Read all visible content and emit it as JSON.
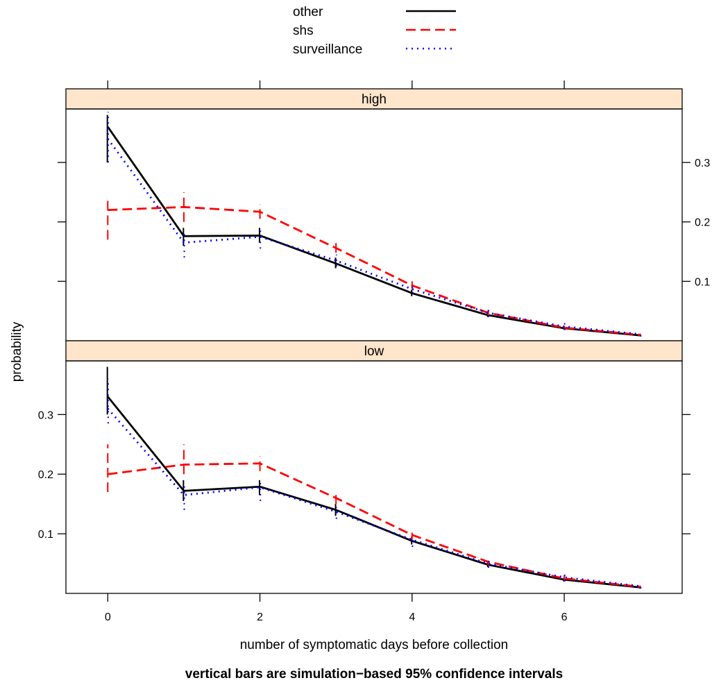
{
  "chart_data": {
    "type": "line",
    "legend": {
      "placement": "top-center",
      "entries": [
        {
          "name": "other",
          "color": "#000000",
          "style": "solid"
        },
        {
          "name": "shs",
          "color": "#ff0000",
          "style": "dashed"
        },
        {
          "name": "surveillance",
          "color": "#0000ff",
          "style": "dotted"
        }
      ]
    },
    "xlabel": "number of symptomatic days before collection",
    "ylabel": "probability",
    "caption": "vertical bars are simulation−based 95% confidence intervals",
    "x": [
      0,
      1,
      2,
      3,
      4,
      5,
      6,
      7
    ],
    "xticks": [
      0,
      2,
      4,
      6
    ],
    "xlim": [
      -0.55,
      7.55
    ],
    "ylim": [
      0,
      0.39
    ],
    "yticks": [
      0.1,
      0.2,
      0.3
    ],
    "panels": [
      {
        "strip": "high",
        "strip_color": "#ffe5cc",
        "series": [
          {
            "name": "other",
            "values": [
              0.36,
              0.176,
              0.177,
              0.13,
              0.08,
              0.043,
              0.021,
              0.009
            ],
            "ci_low": [
              0.3,
              0.16,
              0.165,
              0.122,
              0.075,
              0.04,
              0.019,
              0.008
            ],
            "ci_high": [
              0.38,
              0.19,
              0.19,
              0.14,
              0.086,
              0.047,
              0.024,
              0.011
            ]
          },
          {
            "name": "shs",
            "values": [
              0.22,
              0.225,
              0.217,
              0.156,
              0.093,
              0.047,
              0.022,
              0.01
            ],
            "ci_low": [
              0.17,
              0.2,
              0.205,
              0.148,
              0.087,
              0.043,
              0.02,
              0.008
            ],
            "ci_high": [
              0.24,
              0.25,
              0.23,
              0.165,
              0.1,
              0.052,
              0.025,
              0.012
            ]
          },
          {
            "name": "surveillance",
            "values": [
              0.34,
              0.165,
              0.175,
              0.135,
              0.087,
              0.047,
              0.024,
              0.011
            ],
            "ci_low": [
              0.3,
              0.14,
              0.155,
              0.125,
              0.08,
              0.04,
              0.018,
              0.007
            ],
            "ci_high": [
              0.385,
              0.185,
              0.19,
              0.145,
              0.095,
              0.055,
              0.032,
              0.015
            ]
          }
        ]
      },
      {
        "strip": "low",
        "strip_color": "#ffe5cc",
        "series": [
          {
            "name": "other",
            "values": [
              0.33,
              0.172,
              0.179,
              0.14,
              0.088,
              0.048,
              0.023,
              0.01
            ],
            "ci_low": [
              0.3,
              0.155,
              0.165,
              0.13,
              0.082,
              0.044,
              0.02,
              0.008
            ],
            "ci_high": [
              0.38,
              0.19,
              0.19,
              0.15,
              0.095,
              0.053,
              0.026,
              0.012
            ]
          },
          {
            "name": "shs",
            "values": [
              0.2,
              0.216,
              0.218,
              0.16,
              0.098,
              0.053,
              0.025,
              0.011
            ],
            "ci_low": [
              0.17,
              0.2,
              0.205,
              0.15,
              0.09,
              0.047,
              0.022,
              0.009
            ],
            "ci_high": [
              0.25,
              0.25,
              0.23,
              0.165,
              0.102,
              0.055,
              0.03,
              0.013
            ]
          },
          {
            "name": "surveillance",
            "values": [
              0.31,
              0.165,
              0.178,
              0.137,
              0.09,
              0.05,
              0.027,
              0.012
            ],
            "ci_low": [
              0.285,
              0.14,
              0.155,
              0.125,
              0.078,
              0.043,
              0.02,
              0.008
            ],
            "ci_high": [
              0.36,
              0.185,
              0.19,
              0.145,
              0.095,
              0.055,
              0.035,
              0.015
            ]
          }
        ]
      }
    ]
  }
}
